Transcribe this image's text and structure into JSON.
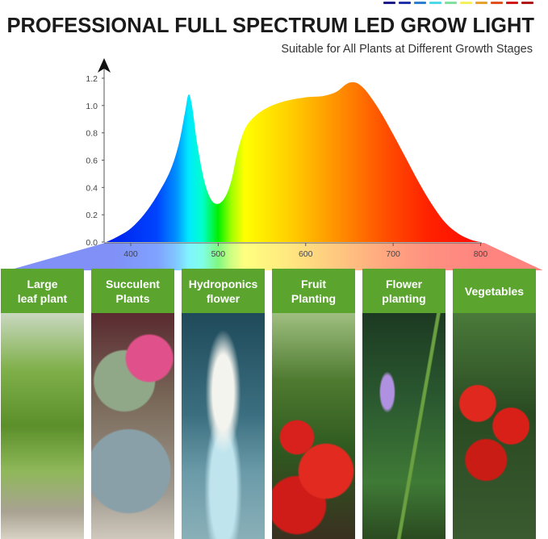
{
  "header": {
    "title": "PROFESSIONAL FULL SPECTRUM LED GROW LIGHT",
    "subtitle": "Suitable for All Plants at Different Growth Stages",
    "decor_colors": [
      "#1a1a8c",
      "#2233aa",
      "#2f7fd0",
      "#4fd8e8",
      "#7fe0a0",
      "#f5f060",
      "#e8a030",
      "#e05020",
      "#d01818",
      "#b01818"
    ]
  },
  "chart_data": {
    "type": "area",
    "title": "",
    "xlabel": "",
    "ylabel": "",
    "xlim": [
      372,
      800
    ],
    "ylim": [
      0,
      1.2
    ],
    "grid": false,
    "x_ticks": [
      400,
      500,
      600,
      700,
      800
    ],
    "y_ticks": [
      "0.0",
      "0.2",
      "0.4",
      "0.6",
      "0.8",
      "1.0",
      "1.2"
    ],
    "series": [
      {
        "x": [
          372,
          385,
          400,
          415,
          430,
          445,
          455,
          462,
          466,
          470,
          476,
          484,
          492,
          500,
          508,
          515,
          522,
          530,
          540,
          555,
          575,
          600,
          620,
          635,
          645,
          652,
          660,
          670,
          685,
          700,
          715,
          730,
          745,
          760,
          775,
          790,
          800
        ],
        "y": [
          0,
          0.04,
          0.1,
          0.2,
          0.34,
          0.52,
          0.72,
          0.95,
          1.08,
          1.0,
          0.72,
          0.45,
          0.31,
          0.28,
          0.33,
          0.45,
          0.66,
          0.82,
          0.91,
          0.98,
          1.03,
          1.06,
          1.07,
          1.1,
          1.15,
          1.17,
          1.16,
          1.1,
          0.96,
          0.79,
          0.61,
          0.43,
          0.27,
          0.14,
          0.06,
          0.015,
          0
        ]
      }
    ],
    "spectrum_colors": [
      {
        "nm": 380,
        "color": "#0022ee"
      },
      {
        "nm": 430,
        "color": "#0044ff"
      },
      {
        "nm": 452,
        "color": "#0090ff"
      },
      {
        "nm": 466,
        "color": "#00e8ff"
      },
      {
        "nm": 482,
        "color": "#00ffcc"
      },
      {
        "nm": 500,
        "color": "#00f000"
      },
      {
        "nm": 515,
        "color": "#a0ff00"
      },
      {
        "nm": 530,
        "color": "#ffff00"
      },
      {
        "nm": 585,
        "color": "#ffcc00"
      },
      {
        "nm": 640,
        "color": "#ff8c00"
      },
      {
        "nm": 690,
        "color": "#ff5000"
      },
      {
        "nm": 740,
        "color": "#ff2200"
      },
      {
        "nm": 800,
        "color": "#ff0a00"
      }
    ]
  },
  "panels": [
    {
      "label": "Large leaf plant",
      "line1": "Large",
      "line2": "leaf plant"
    },
    {
      "label": "Succulent Plants",
      "line1": "Succulent",
      "line2": "Plants"
    },
    {
      "label": "Hydroponics flower",
      "line1": "Hydroponics",
      "line2": "flower"
    },
    {
      "label": "Fruit Planting",
      "line1": "Fruit",
      "line2": "Planting"
    },
    {
      "label": "Flower planting",
      "line1": "Flower",
      "line2": "planting"
    },
    {
      "label": "Vegetables",
      "line1": "Vegetables",
      "line2": ""
    }
  ],
  "accent_color": "#5ba52f"
}
